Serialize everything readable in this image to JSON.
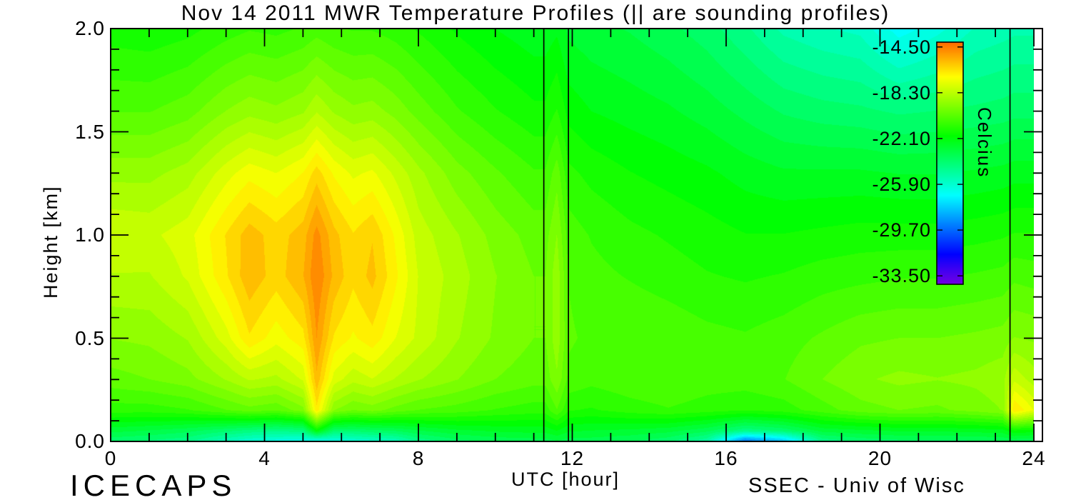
{
  "title": "Nov 14 2011 MWR Temperature Profiles (|| are sounding profiles)",
  "branding": {
    "bottom_left": "ICECAPS",
    "bottom_right": "SSEC - Univ of Wisc"
  },
  "axes": {
    "x": {
      "label": "UTC [hour]",
      "tick_labels": [
        "0",
        "4",
        "8",
        "12",
        "16",
        "20",
        "24"
      ],
      "tick_values": [
        0,
        4,
        8,
        12,
        16,
        20,
        24
      ]
    },
    "y": {
      "label": "Height [km]",
      "tick_labels": [
        "2.0",
        "1.5",
        "1.0",
        "0.5",
        "0.0"
      ],
      "tick_values": [
        2.0,
        1.5,
        1.0,
        0.5,
        0.0
      ]
    }
  },
  "colorbar": {
    "title": "Celcius",
    "tick_labels": [
      "-14.50",
      "-18.30",
      "-22.10",
      "-25.90",
      "-29.70",
      "-33.50"
    ],
    "tick_values": [
      -14.5,
      -18.3,
      -22.1,
      -25.9,
      -29.7,
      -33.5
    ],
    "top_color": "#ff6a00",
    "bottom_color": "#4c00d8"
  },
  "chart_data": {
    "type": "heatmap",
    "title": "Nov 14 2011 MWR Temperature Profiles (|| are sounding profiles)",
    "xlabel": "UTC [hour]",
    "ylabel": "Height [km]",
    "legend_label": "Celcius",
    "xlim": [
      0,
      24
    ],
    "ylim": [
      0,
      2.0
    ],
    "grid": false,
    "color_scale_celsius": {
      "min": -34.2,
      "max": -14.1,
      "contour_step": 0.48
    },
    "sounding_lines_utc": [
      11.26,
      11.9,
      23.38
    ],
    "hours": [
      0,
      1,
      2,
      3,
      3.6,
      4.3,
      5,
      5.35,
      5.8,
      6.3,
      6.8,
      7.4,
      8,
      9,
      10,
      11,
      11.3,
      11.6,
      11.9,
      12.5,
      13.5,
      14.5,
      15.5,
      16.5,
      17.5,
      18.5,
      19.5,
      20.5,
      21.5,
      22.5,
      23.2,
      23.5,
      24
    ],
    "heights_km": [
      0,
      0.05,
      0.15,
      0.3,
      0.5,
      0.8,
      1.0,
      1.3,
      1.6,
      2.0
    ],
    "temps_c": [
      [
        -24.0,
        -24.2,
        -24.5,
        -25.5,
        -26.0,
        -26.3,
        -26.5,
        -26.5,
        -26.3,
        -26.0,
        -25.8,
        -25.5,
        -24.5,
        -23.8,
        -23.5,
        -23.4,
        -23.4,
        -23.2,
        -23.4,
        -23.4,
        -23.6,
        -24.0,
        -25.0,
        -29.5,
        -28.0,
        -24.5,
        -24.0,
        -23.8,
        -23.8,
        -23.7,
        -23.6,
        -23.5,
        -23.6
      ],
      [
        -23.0,
        -23.2,
        -23.5,
        -24.0,
        -24.3,
        -24.5,
        -24.3,
        -22.0,
        -24.0,
        -24.0,
        -23.8,
        -23.6,
        -23.2,
        -22.8,
        -22.6,
        -22.5,
        -22.5,
        -22.2,
        -22.6,
        -22.7,
        -22.8,
        -23.0,
        -23.5,
        -24.5,
        -24.0,
        -23.0,
        -22.8,
        -22.6,
        -22.6,
        -22.5,
        -22.4,
        -21.8,
        -22.0
      ],
      [
        -21.0,
        -21.0,
        -20.8,
        -20.3,
        -20.0,
        -20.2,
        -19.5,
        -16.6,
        -19.3,
        -19.8,
        -19.6,
        -20.0,
        -20.3,
        -20.5,
        -20.8,
        -21.0,
        -21.0,
        -20.3,
        -21.2,
        -21.3,
        -21.0,
        -20.8,
        -21.0,
        -21.2,
        -21.0,
        -20.5,
        -20.0,
        -19.8,
        -19.9,
        -19.6,
        -19.3,
        -16.4,
        -17.4
      ],
      [
        -20.0,
        -19.8,
        -19.5,
        -18.8,
        -18.3,
        -18.5,
        -17.8,
        -15.6,
        -17.6,
        -18.2,
        -17.9,
        -18.4,
        -18.8,
        -19.3,
        -19.8,
        -20.1,
        -20.1,
        -19.4,
        -20.4,
        -20.6,
        -20.4,
        -20.3,
        -20.5,
        -20.5,
        -20.3,
        -19.8,
        -19.4,
        -19.2,
        -19.3,
        -19.2,
        -19.0,
        -18.0,
        -18.6
      ],
      [
        -19.3,
        -19.2,
        -18.8,
        -17.6,
        -16.5,
        -17.2,
        -16.6,
        -15.0,
        -16.5,
        -17.0,
        -16.6,
        -17.4,
        -18.0,
        -18.8,
        -19.4,
        -19.8,
        -19.8,
        -19.0,
        -20.2,
        -20.4,
        -20.3,
        -20.4,
        -20.6,
        -20.7,
        -20.5,
        -20.2,
        -19.9,
        -19.8,
        -19.8,
        -19.7,
        -19.6,
        -19.3,
        -19.4
      ],
      [
        -18.4,
        -18.4,
        -17.8,
        -16.5,
        -15.6,
        -16.2,
        -15.5,
        -14.55,
        -15.6,
        -16.3,
        -15.8,
        -16.8,
        -17.9,
        -18.6,
        -19.3,
        -19.8,
        -19.8,
        -19.0,
        -20.3,
        -20.6,
        -20.8,
        -21.0,
        -21.2,
        -21.3,
        -21.2,
        -21.0,
        -20.9,
        -20.8,
        -20.8,
        -20.7,
        -20.6,
        -20.4,
        -20.5
      ],
      [
        -17.9,
        -18.0,
        -17.6,
        -16.4,
        -15.7,
        -16.2,
        -15.7,
        -14.8,
        -15.8,
        -16.4,
        -16.0,
        -17.0,
        -18.1,
        -18.8,
        -19.5,
        -20.0,
        -20.0,
        -19.3,
        -20.5,
        -20.8,
        -21.1,
        -21.3,
        -21.5,
        -21.7,
        -21.7,
        -21.6,
        -21.5,
        -21.5,
        -21.5,
        -21.4,
        -21.3,
        -21.2,
        -21.2
      ],
      [
        -19.0,
        -19.0,
        -18.6,
        -17.6,
        -17.1,
        -17.4,
        -16.9,
        -16.2,
        -17.0,
        -17.5,
        -17.3,
        -18.0,
        -18.7,
        -19.6,
        -20.2,
        -20.7,
        -20.7,
        -20.0,
        -21.1,
        -21.4,
        -21.7,
        -21.9,
        -22.1,
        -22.4,
        -22.6,
        -22.6,
        -22.6,
        -22.7,
        -22.7,
        -22.6,
        -22.5,
        -22.4,
        -22.4
      ],
      [
        -20.3,
        -20.3,
        -20.0,
        -19.3,
        -19.0,
        -19.2,
        -18.9,
        -18.4,
        -18.9,
        -19.2,
        -19.1,
        -19.5,
        -20.0,
        -20.7,
        -21.2,
        -21.6,
        -21.6,
        -21.2,
        -21.9,
        -22.2,
        -22.4,
        -22.6,
        -22.9,
        -23.3,
        -23.7,
        -23.9,
        -24.0,
        -24.2,
        -24.1,
        -24.0,
        -23.9,
        -23.8,
        -23.8
      ],
      [
        -21.5,
        -21.6,
        -21.4,
        -21.0,
        -20.8,
        -20.9,
        -20.7,
        -20.5,
        -20.7,
        -20.8,
        -20.8,
        -21.0,
        -21.3,
        -21.8,
        -22.2,
        -22.5,
        -22.5,
        -22.3,
        -22.8,
        -23.0,
        -23.2,
        -23.5,
        -23.9,
        -24.5,
        -25.2,
        -25.5,
        -25.7,
        -26.8,
        -26.2,
        -25.5,
        -25.3,
        -25.2,
        -25.2
      ]
    ]
  }
}
